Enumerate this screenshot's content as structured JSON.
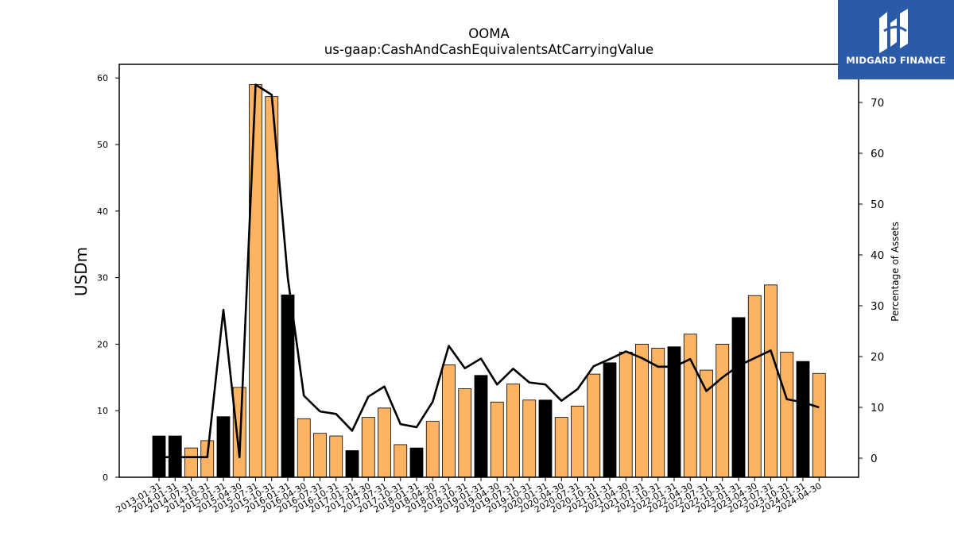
{
  "chart_data": {
    "type": "bar+line",
    "title": "OOMA",
    "subtitle": "us-gaap:CashAndCashEquivalentsAtCarryingValue",
    "ylabel": "USDm",
    "y2label": "Percentage of Assets",
    "ylim": [
      0,
      62
    ],
    "y2lim": [
      -4,
      80
    ],
    "yticks": [
      0,
      10,
      20,
      30,
      40,
      50,
      60
    ],
    "y2ticks": [
      0,
      10,
      20,
      30,
      40,
      50,
      60,
      70
    ],
    "grid": false,
    "categories": [
      "2013-01-31",
      "2014-01-31",
      "2014-07-31",
      "2014-10-31",
      "2015-01-31",
      "2015-04-30",
      "2015-07-31",
      "2015-10-31",
      "2016-01-31",
      "2016-04-30",
      "2016-07-31",
      "2016-10-31",
      "2017-01-31",
      "2017-04-30",
      "2017-07-31",
      "2017-10-31",
      "2018-01-31",
      "2018-04-30",
      "2018-07-31",
      "2018-10-31",
      "2019-01-31",
      "2019-04-30",
      "2019-07-31",
      "2019-10-31",
      "2020-01-31",
      "2020-04-30",
      "2020-07-31",
      "2020-10-31",
      "2021-01-31",
      "2021-04-30",
      "2021-07-31",
      "2021-10-31",
      "2022-01-31",
      "2022-04-30",
      "2022-07-31",
      "2022-10-31",
      "2023-01-31",
      "2023-04-30",
      "2023-07-31",
      "2023-10-31",
      "2024-01-31",
      "2024-04-30"
    ],
    "series": [
      {
        "kind": "bar",
        "values": [
          6.2,
          6.2,
          4.4,
          5.5,
          9.1,
          13.5,
          59.0,
          57.2,
          27.4,
          8.8,
          6.6,
          6.2,
          4.0,
          9.0,
          10.4,
          4.9,
          4.4,
          8.4,
          16.9,
          13.3,
          15.3,
          11.3,
          14.0,
          11.6,
          11.6,
          9.0,
          10.7,
          15.5,
          17.2,
          18.8,
          20.0,
          19.4,
          19.6,
          21.5,
          16.1,
          20.0,
          24.0,
          27.3,
          28.9,
          18.8,
          17.4,
          15.6
        ],
        "fiscal_year_end": [
          true,
          true,
          false,
          false,
          true,
          false,
          false,
          false,
          true,
          false,
          false,
          false,
          true,
          false,
          false,
          false,
          true,
          false,
          false,
          false,
          true,
          false,
          false,
          false,
          true,
          false,
          false,
          false,
          true,
          false,
          false,
          false,
          true,
          false,
          false,
          false,
          true,
          false,
          false,
          false,
          true,
          false
        ],
        "color_annual": "#000000",
        "color_quarter": "#fdb462"
      },
      {
        "kind": "line",
        "axis": "right",
        "color": "#000000",
        "values": [
          0.2,
          0.2,
          0.2,
          0.2,
          29.2,
          0.2,
          73.5,
          71.5,
          35.5,
          12.3,
          9.2,
          8.7,
          5.4,
          12.1,
          14.1,
          6.7,
          6.1,
          11.1,
          22.1,
          17.7,
          19.6,
          14.5,
          17.6,
          14.9,
          14.5,
          11.3,
          13.6,
          18.1,
          19.5,
          21.0,
          19.7,
          18.0,
          18.0,
          19.5,
          13.2,
          15.9,
          18.2,
          19.7,
          21.2,
          11.6,
          11.0,
          10.0
        ]
      }
    ]
  },
  "logo": {
    "text": "MIDGARD FINANCE",
    "bg": "#2b5aa9",
    "icon": "midgard-logo-icon"
  }
}
